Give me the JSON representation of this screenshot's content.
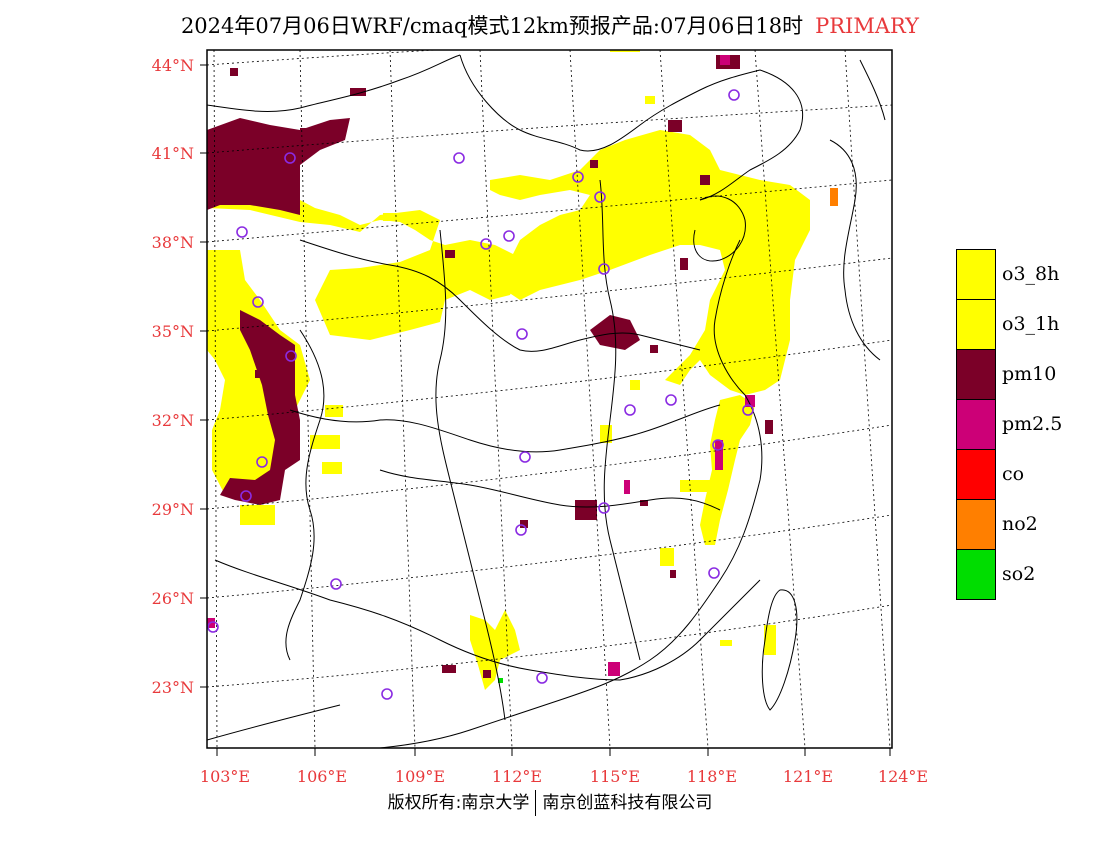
{
  "header": {
    "title": "2024年07月06日WRF/cmaq模式12km预报产品:07月06日18时",
    "badge": "PRIMARY"
  },
  "footer": {
    "copyright_left": "版权所有:南京大学",
    "copyright_right": "南京创蓝科技有限公司"
  },
  "map": {
    "lat_ticks": [
      "44°N",
      "41°N",
      "38°N",
      "35°N",
      "32°N",
      "29°N",
      "26°N",
      "23°N"
    ],
    "lon_ticks": [
      "103°E",
      "106°E",
      "109°E",
      "112°E",
      "115°E",
      "118°E",
      "121°E",
      "124°E"
    ]
  },
  "legend": [
    {
      "label": "o3_8h",
      "color": "#ffff00"
    },
    {
      "label": "o3_1h",
      "color": "#ffff00"
    },
    {
      "label": "pm10",
      "color": "#7b0028"
    },
    {
      "label": "pm2.5",
      "color": "#cc0077"
    },
    {
      "label": "co",
      "color": "#ff0000"
    },
    {
      "label": "no2",
      "color": "#ff7f00"
    },
    {
      "label": "so2",
      "color": "#00dd00"
    }
  ],
  "colors": {
    "o3": "#ffff00",
    "pm10": "#7b0028",
    "pm25": "#cc0077",
    "no2": "#ff7f00",
    "so2": "#00dd00",
    "station": "#8a2be2",
    "tick": "#e8393b"
  }
}
